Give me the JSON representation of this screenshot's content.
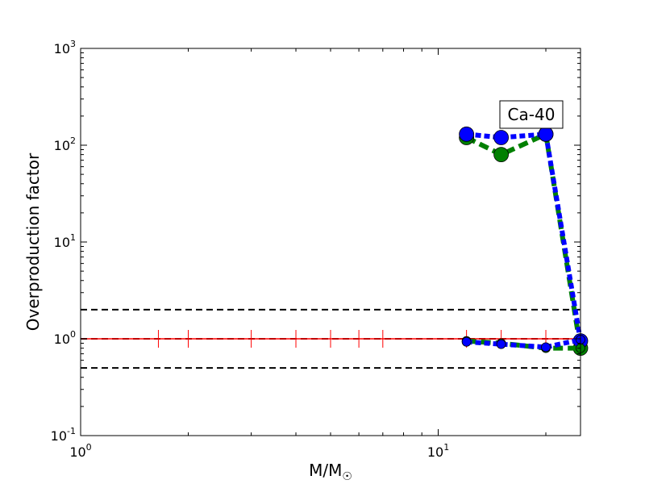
{
  "chart_data": {
    "type": "line",
    "title": "",
    "xlabel": "M/M",
    "xlabel_sub": "☉",
    "ylabel": "Overproduction factor",
    "xscale": "log",
    "yscale": "log",
    "xlim": [
      1,
      25
    ],
    "ylim": [
      0.1,
      1000
    ],
    "x_ticks": [
      {
        "value": 1,
        "base": "10",
        "exp": "0"
      },
      {
        "value": 10,
        "base": "10",
        "exp": "1"
      }
    ],
    "y_ticks": [
      {
        "value": 0.1,
        "base": "10",
        "exp": "-1"
      },
      {
        "value": 1,
        "base": "10",
        "exp": "0"
      },
      {
        "value": 10,
        "base": "10",
        "exp": "1"
      },
      {
        "value": 100,
        "base": "10",
        "exp": "2"
      },
      {
        "value": 1000,
        "base": "10",
        "exp": "3"
      }
    ],
    "grid": false,
    "annotation": "Ca-40",
    "reference_lines": [
      {
        "y": 2,
        "style": "dashed",
        "color": "#000000"
      },
      {
        "y": 1,
        "style": "dashed",
        "color": "#000000"
      },
      {
        "y": 0.5,
        "style": "dashed",
        "color": "#000000"
      }
    ],
    "red_line": {
      "y": 1,
      "color": "#ff0000",
      "tick_x": [
        1.65,
        2.0,
        3.0,
        4.0,
        5.0,
        6.0,
        7.0,
        12.0,
        15.0,
        20.0,
        25.0
      ]
    },
    "series": [
      {
        "color": "#008000",
        "style": "dashed",
        "marker_size": "large",
        "x": [
          12,
          15,
          20,
          25
        ],
        "y": [
          120,
          80,
          130,
          0.8
        ]
      },
      {
        "color": "#0000ff",
        "style": "dotted",
        "marker_size": "large",
        "x": [
          12,
          15,
          20,
          25
        ],
        "y": [
          130,
          120,
          130,
          0.95
        ]
      },
      {
        "color": "#008000",
        "style": "dashed",
        "marker_size": "small",
        "x": [
          12,
          15,
          20,
          25
        ],
        "y": [
          0.95,
          0.9,
          0.8,
          0.8
        ]
      },
      {
        "color": "#0000ff",
        "style": "dotted",
        "marker_size": "small",
        "x": [
          12,
          15,
          20,
          25
        ],
        "y": [
          0.93,
          0.88,
          0.82,
          0.98
        ]
      }
    ]
  }
}
